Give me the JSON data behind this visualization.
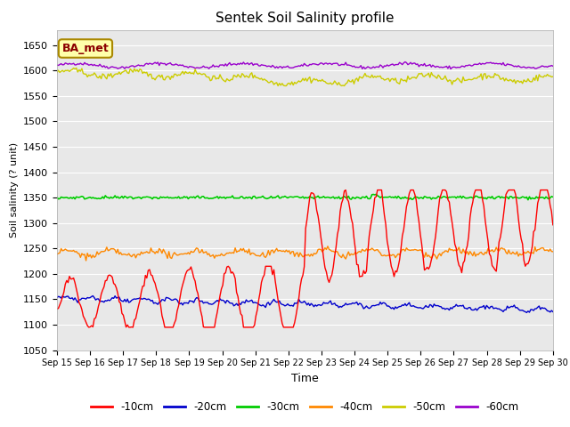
{
  "title": "Sentek Soil Salinity profile",
  "xlabel": "Time",
  "ylabel": "Soil salinity (? unit)",
  "ylim": [
    1050,
    1680
  ],
  "yticks": [
    1050,
    1100,
    1150,
    1200,
    1250,
    1300,
    1350,
    1400,
    1450,
    1500,
    1550,
    1600,
    1650
  ],
  "background_color": "#e8e8e8",
  "annotation_text": "BA_met",
  "annotation_color": "#8B0000",
  "annotation_bg": "#FFFFAA",
  "series_colors": {
    "-10cm": "#ff0000",
    "-20cm": "#0000cc",
    "-30cm": "#00cc00",
    "-40cm": "#ff8800",
    "-50cm": "#cccc00",
    "-60cm": "#9900cc"
  },
  "legend_labels": [
    "-10cm",
    "-20cm",
    "-30cm",
    "-40cm",
    "-50cm",
    "-60cm"
  ],
  "date_labels": [
    "Sep 15",
    "Sep 16",
    "Sep 17",
    "Sep 18",
    "Sep 19",
    "Sep 20",
    "Sep 21",
    "Sep 22",
    "Sep 23",
    "Sep 24",
    "Sep 25",
    "Sep 26",
    "Sep 27",
    "Sep 28",
    "Sep 29",
    "Sep 30"
  ]
}
